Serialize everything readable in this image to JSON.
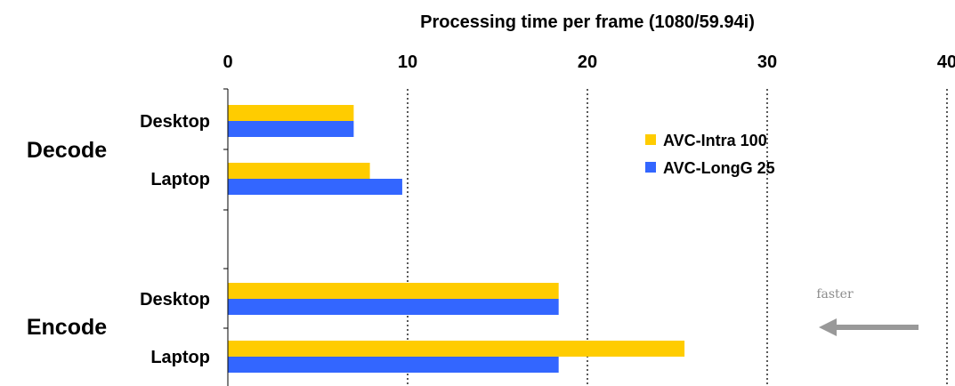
{
  "chart_data": {
    "type": "bar",
    "orientation": "horizontal",
    "title": "Processing time per frame (1080/59.94i)",
    "xlim": [
      0,
      40
    ],
    "xticks": [
      "0",
      "10",
      "20",
      "30",
      "40"
    ],
    "grid": "vertical dotted",
    "legend_position": "upper-right",
    "groups": [
      {
        "label": "Decode",
        "categories": [
          "Desktop",
          "Laptop"
        ],
        "series": [
          {
            "name": "AVC-Intra 100",
            "values": [
              7.0,
              7.9
            ]
          },
          {
            "name": "AVC-LongG 25",
            "values": [
              7.0,
              9.7
            ]
          }
        ]
      },
      {
        "label": "Encode",
        "categories": [
          "Desktop",
          "Laptop"
        ],
        "series": [
          {
            "name": "AVC-Intra 100",
            "values": [
              18.4,
              25.4
            ]
          },
          {
            "name": "AVC-LongG 25",
            "values": [
              18.4,
              18.4
            ]
          }
        ]
      }
    ],
    "legend": [
      {
        "name": "AVC-Intra 100",
        "color": "#ffcc00"
      },
      {
        "name": "AVC-LongG 25",
        "color": "#3366ff"
      }
    ],
    "annotation": "faster"
  },
  "colors": {
    "intra": "#ffcc00",
    "longg": "#3366ff",
    "arrow": "#999999"
  }
}
